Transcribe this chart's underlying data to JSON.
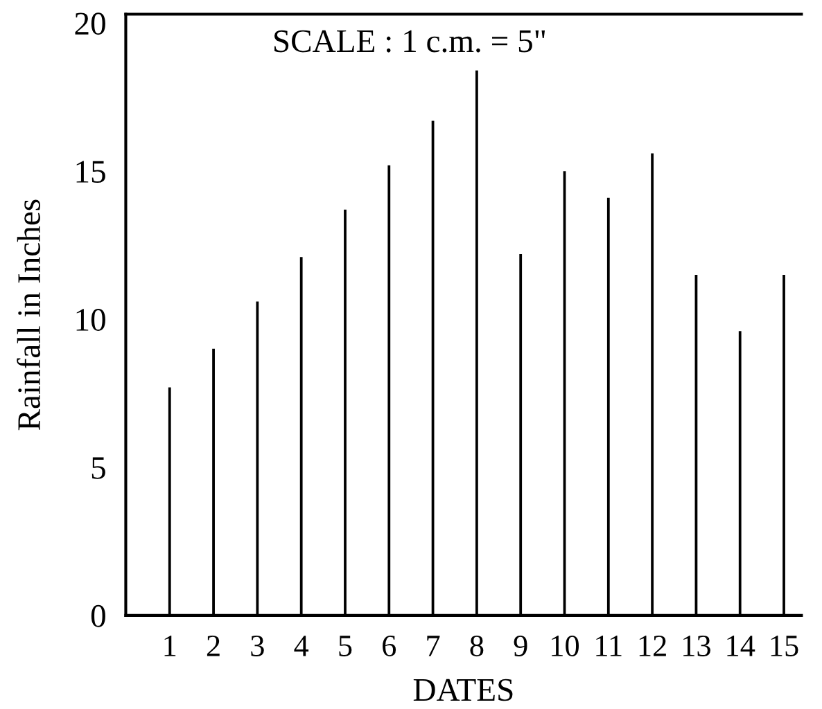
{
  "chart_data": {
    "type": "bar",
    "xlabel": "DATES",
    "ylabel": "Rainfall in Inches",
    "annotations": [
      "SCALE : 1 c.m. = 5\""
    ],
    "categories": [
      "1",
      "2",
      "3",
      "4",
      "5",
      "6",
      "7",
      "8",
      "9",
      "10",
      "11",
      "12",
      "13",
      "14",
      "15"
    ],
    "values": [
      7.7,
      9.0,
      10.6,
      12.1,
      13.7,
      15.2,
      16.7,
      18.4,
      12.2,
      15.0,
      14.1,
      15.6,
      11.5,
      9.6,
      11.5
    ],
    "color": "#000000",
    "ylim": [
      0,
      20.3
    ],
    "yticks": [
      0,
      5,
      10,
      15,
      20
    ],
    "grid": false,
    "legend": false
  }
}
